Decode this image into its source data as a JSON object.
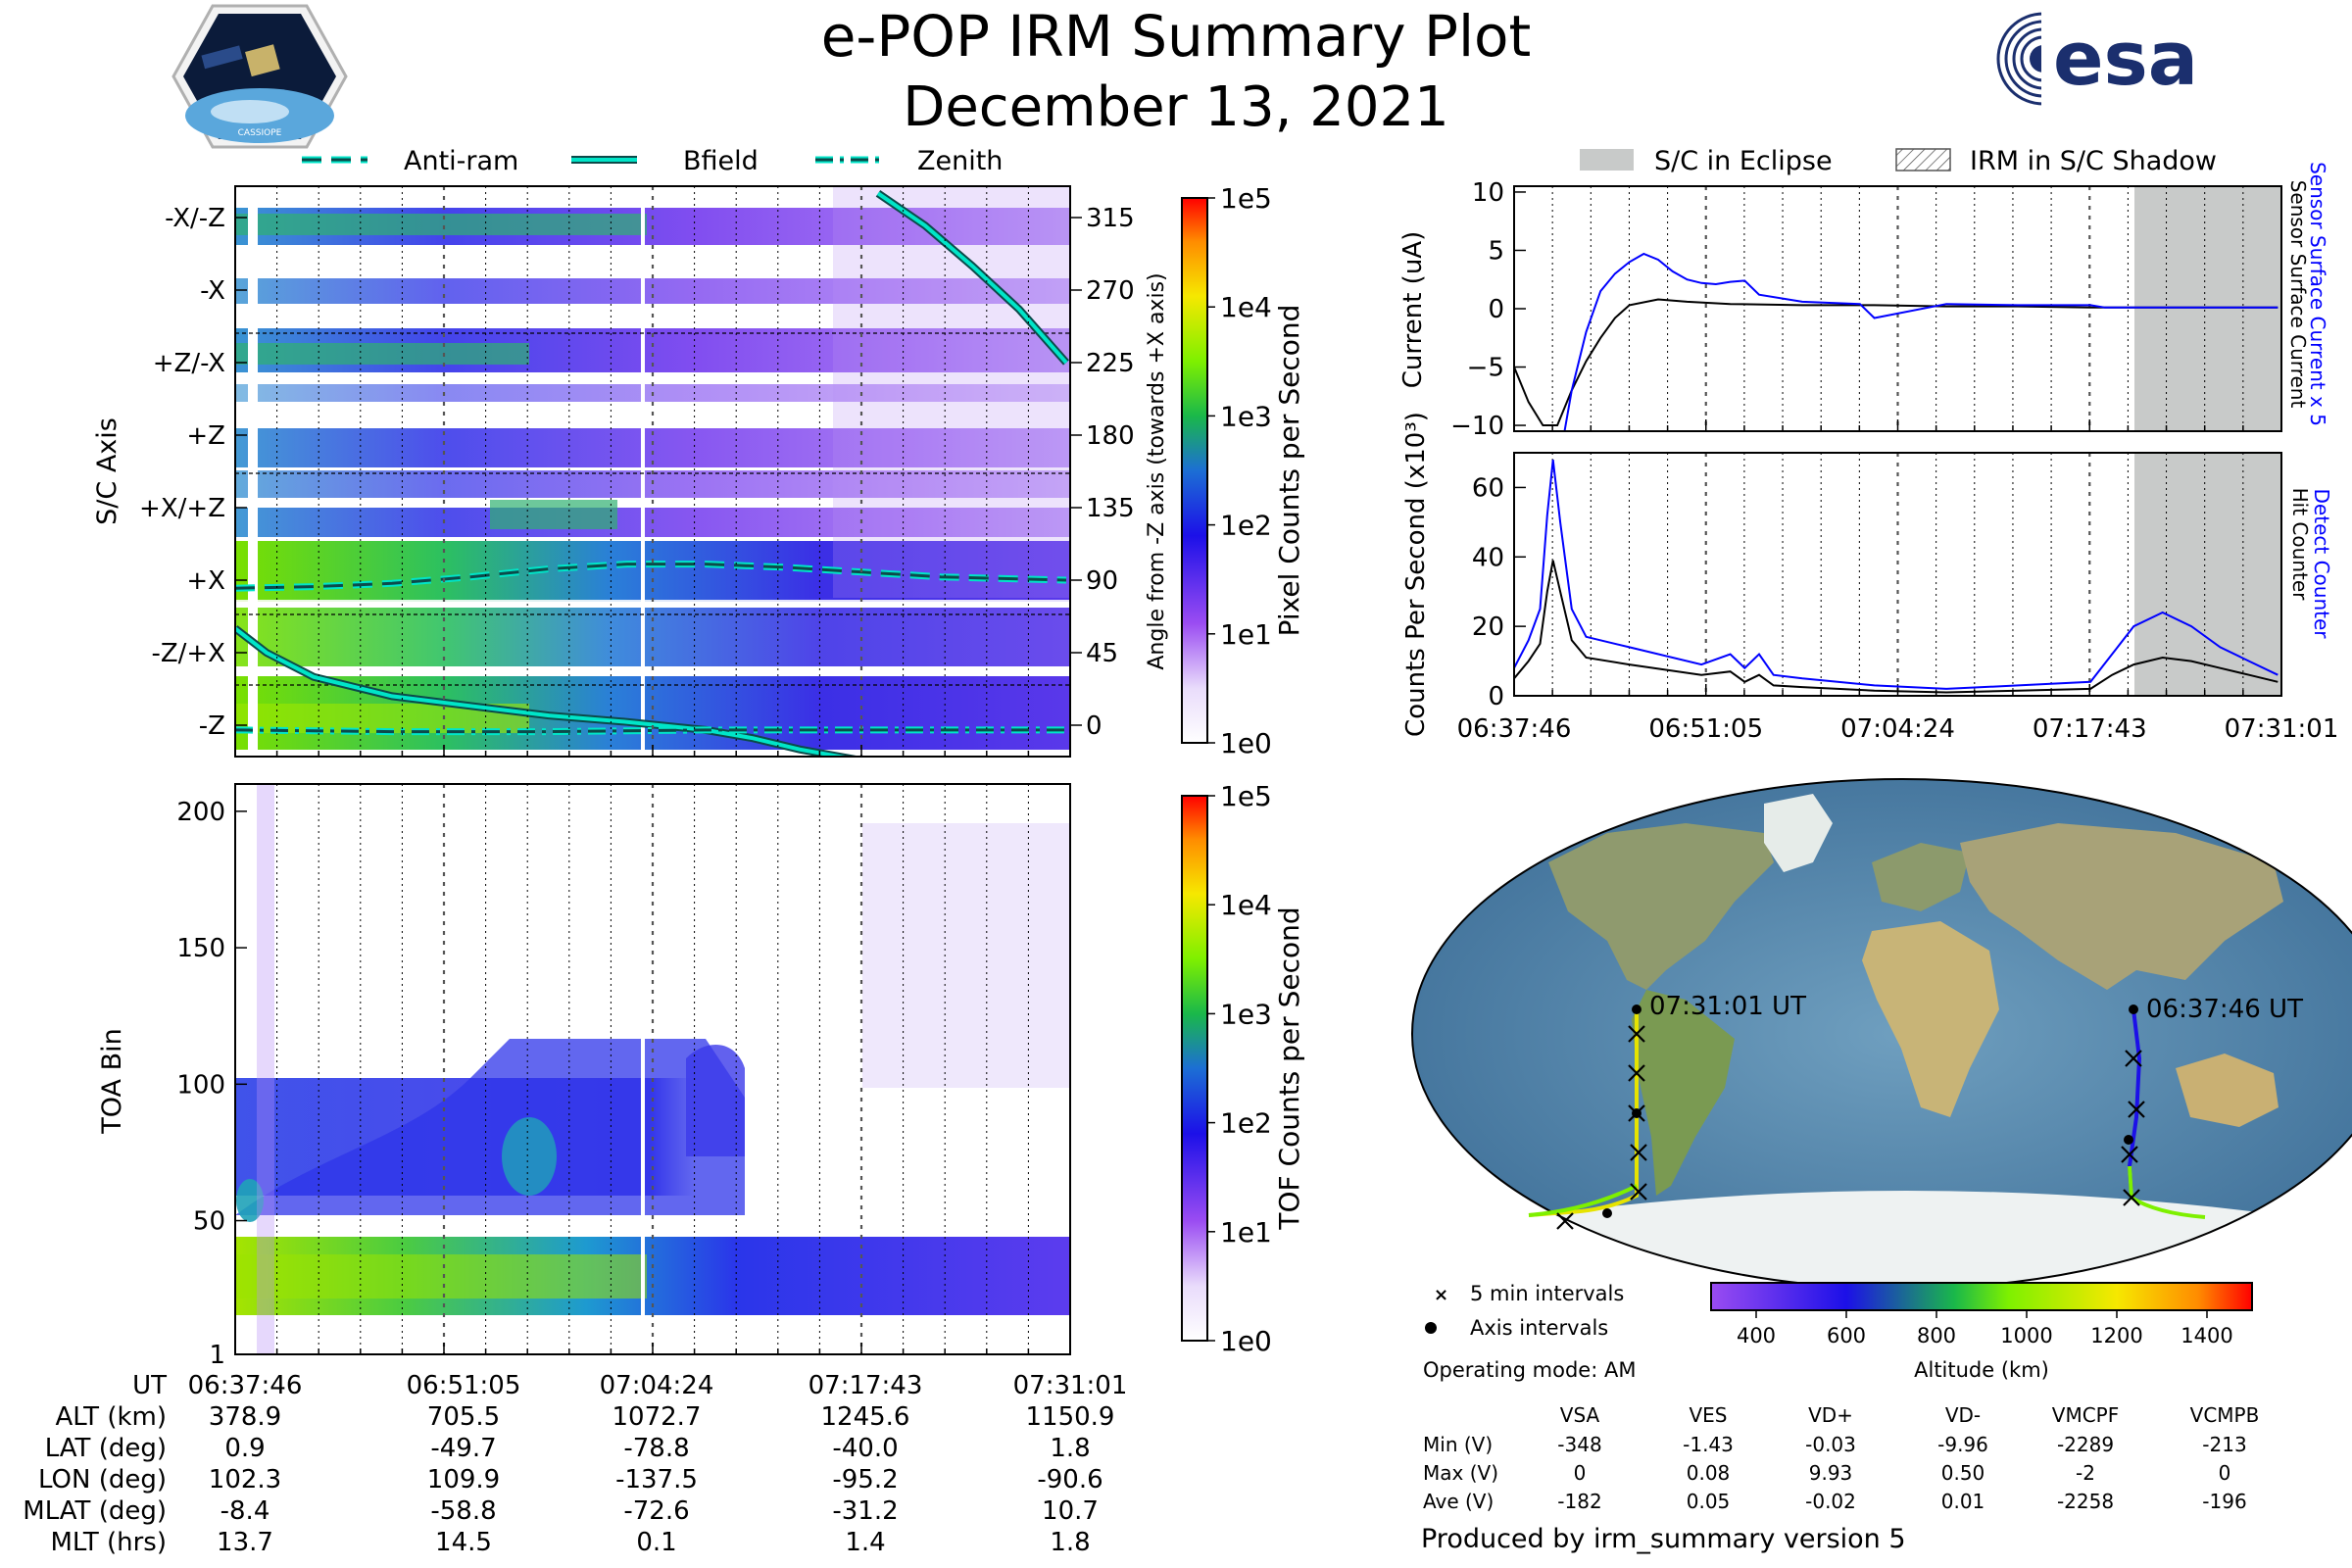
{
  "title": "e-POP IRM Summary Plot",
  "date": "December 13, 2021",
  "logos": {
    "mission": "CASSIOPE",
    "agency": "esa"
  },
  "legend_top_left": [
    "Anti-ram",
    "Bfield",
    "Zenith"
  ],
  "legend_top_right": [
    "S/C in Eclipse",
    "IRM in S/C Shadow"
  ],
  "colors": {
    "anti_ram": "#0c4a4a",
    "bfield": "#00e5c8",
    "zenith": "#0c4a4a",
    "current_black": "#000000",
    "current_blue": "#0000ff",
    "eclipse": "#c8cac9"
  },
  "time_ticks": [
    "06:37:46",
    "06:51:05",
    "07:04:24",
    "07:17:43",
    "07:31:01"
  ],
  "chart_data": [
    {
      "type": "heatmap",
      "ylabel": "S/C Axis",
      "y_categories": [
        "-X/-Z",
        "-X",
        "+Z/-X",
        "+Z",
        "+X/+Z",
        "+X",
        "-Z/+X",
        "-Z"
      ],
      "right_ylabel": "Angle from -Z axis (towards +X axis)",
      "right_ticks": [
        315,
        270,
        225,
        180,
        135,
        90,
        45,
        0
      ],
      "colorbar": {
        "label": "Pixel Counts per Second",
        "ticks": [
          "1e5",
          "1e4",
          "1e3",
          "1e2",
          "1e1",
          "1e0"
        ]
      },
      "series": [
        {
          "name": "Anti-ram",
          "x": [
            0,
            5,
            10,
            15,
            20,
            25,
            30,
            35,
            40,
            45,
            53
          ],
          "y": [
            85,
            86,
            88,
            92,
            97,
            100,
            100,
            98,
            95,
            92,
            90
          ]
        },
        {
          "name": "Bfield",
          "x": [
            0,
            2,
            5,
            10,
            15,
            20,
            25,
            30,
            33,
            36,
            40,
            41,
            44,
            47,
            50,
            53
          ],
          "y": [
            60,
            45,
            30,
            18,
            12,
            6,
            2,
            -3,
            -8,
            -15,
            -22,
            330,
            310,
            285,
            258,
            225
          ]
        },
        {
          "name": "Zenith",
          "x": [
            0,
            10,
            20,
            30,
            40,
            53
          ],
          "y": [
            -3,
            -4,
            -4,
            -3,
            -3,
            -3
          ]
        }
      ]
    },
    {
      "type": "heatmap",
      "ylabel": "TOA Bin",
      "yticks": [
        1,
        50,
        100,
        150,
        200
      ],
      "ylim": [
        1,
        210
      ],
      "colorbar": {
        "label": "TOF Counts per Second",
        "ticks": [
          "1e5",
          "1e4",
          "1e3",
          "1e2",
          "1e1",
          "1e0"
        ]
      }
    },
    {
      "type": "line",
      "ylabel": "Current (uA)",
      "right_labels": [
        "Sensor Surface Current x 5",
        "Sensor Surface Current"
      ],
      "yticks": [
        10,
        5,
        0,
        -5,
        -10
      ],
      "ylim": [
        -10.5,
        10.5
      ],
      "series": [
        {
          "name": "Sensor Surface Current",
          "x": [
            0,
            1,
            2,
            3,
            4,
            5,
            6,
            7,
            8,
            10,
            12,
            15,
            20,
            25,
            30,
            35,
            40,
            45,
            50,
            53
          ],
          "y": [
            -5,
            -8,
            -10,
            -10,
            -7,
            -4.5,
            -2.5,
            -0.8,
            0.3,
            0.8,
            0.6,
            0.4,
            0.3,
            0.3,
            0.2,
            0.2,
            0.1,
            0.1,
            0.1,
            0.1
          ]
        },
        {
          "name": "Sensor Surface Current x 5",
          "x": [
            3.5,
            4,
            5,
            6,
            7,
            8,
            9,
            10,
            11,
            12,
            13,
            14,
            15,
            16,
            17,
            20,
            24,
            25,
            30,
            35,
            40,
            41,
            45,
            50,
            53
          ],
          "y": [
            -10.5,
            -7,
            -2,
            1.5,
            3,
            4,
            4.7,
            4.2,
            3.2,
            2.5,
            2.2,
            2.1,
            2.3,
            2.4,
            1.2,
            0.6,
            0.4,
            -0.8,
            0.4,
            0.3,
            0.3,
            0.1,
            0.1,
            0.1,
            0.1
          ]
        }
      ]
    },
    {
      "type": "line",
      "ylabel": "Counts Per Second (x10³)",
      "right_labels": [
        "Detect Counter",
        "Hit Counter"
      ],
      "yticks": [
        0,
        20,
        40,
        60
      ],
      "ylim": [
        0,
        70
      ],
      "series": [
        {
          "name": "Hit Counter",
          "x": [
            0,
            1,
            1.8,
            2.3,
            2.7,
            3.2,
            4,
            5,
            8,
            13,
            15,
            16,
            17,
            18,
            20,
            25,
            30,
            35,
            40,
            41.5,
            43,
            45,
            47,
            49,
            51,
            53
          ],
          "y": [
            5,
            10,
            15,
            30,
            39,
            30,
            16,
            11,
            9,
            6,
            7,
            4,
            6,
            3,
            2.5,
            1.5,
            1,
            1.5,
            2,
            6,
            9,
            11,
            10,
            8,
            6,
            4
          ]
        },
        {
          "name": "Detect Counter",
          "x": [
            0,
            1,
            1.8,
            2.3,
            2.7,
            3.2,
            4,
            5,
            8,
            13,
            15,
            16,
            17,
            18,
            20,
            25,
            30,
            35,
            40,
            41.5,
            43,
            45,
            47,
            49,
            51,
            53
          ],
          "y": [
            8,
            16,
            25,
            52,
            68,
            50,
            25,
            17,
            14,
            9,
            12,
            8,
            12,
            6,
            5,
            3,
            2,
            3,
            4,
            12,
            20,
            24,
            20,
            14,
            10,
            6
          ]
        }
      ]
    }
  ],
  "map": {
    "labels": [
      "07:31:01 UT",
      "06:37:46 UT"
    ],
    "legend": [
      "5 min intervals",
      "Axis intervals"
    ],
    "altitude_colorbar": {
      "label": "Altitude (km)",
      "ticks": [
        400,
        600,
        800,
        1000,
        1200,
        1400
      ],
      "range": [
        300,
        1500
      ]
    }
  },
  "operating_mode": "Operating mode: AM",
  "voltage_table": {
    "headers": [
      "VSA",
      "VES",
      "VD+",
      "VD-",
      "VMCPF",
      "VCMPB"
    ],
    "rows": [
      {
        "label": "Min (V)",
        "values": [
          "-348",
          "-1.43",
          "-0.03",
          "-9.96",
          "-2289",
          "-213"
        ]
      },
      {
        "label": "Max (V)",
        "values": [
          "0",
          "0.08",
          "9.93",
          "0.50",
          "-2",
          "0"
        ]
      },
      {
        "label": "Ave (V)",
        "values": [
          "-182",
          "0.05",
          "-0.02",
          "0.01",
          "-2258",
          "-196"
        ]
      }
    ]
  },
  "ephemeris": {
    "columns": [
      "06:37:46",
      "06:51:05",
      "07:04:24",
      "07:17:43",
      "07:31:01"
    ],
    "rows": [
      {
        "label": "UT",
        "values": [
          "06:37:46",
          "06:51:05",
          "07:04:24",
          "07:17:43",
          "07:31:01"
        ]
      },
      {
        "label": "ALT (km)",
        "values": [
          "378.9",
          "705.5",
          "1072.7",
          "1245.6",
          "1150.9"
        ]
      },
      {
        "label": "LAT (deg)",
        "values": [
          "0.9",
          "-49.7",
          "-78.8",
          "-40.0",
          "1.8"
        ]
      },
      {
        "label": "LON (deg)",
        "values": [
          "102.3",
          "109.9",
          "-137.5",
          "-95.2",
          "-90.6"
        ]
      },
      {
        "label": "MLAT (deg)",
        "values": [
          "-8.4",
          "-58.8",
          "-72.6",
          "-31.2",
          "10.7"
        ]
      },
      {
        "label": "MLT (hrs)",
        "values": [
          "13.7",
          "14.5",
          "0.1",
          "1.4",
          "1.8"
        ]
      }
    ]
  },
  "footer": "Produced by irm_summary version 5"
}
